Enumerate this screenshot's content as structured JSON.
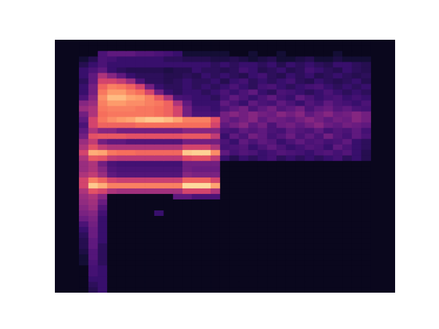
{
  "chart_data": {
    "type": "heatmap",
    "tick_labels": false,
    "grid": false,
    "xlim": [
      0,
      31
    ],
    "ylim": [
      0,
      46
    ],
    "color_range": [
      0,
      100
    ],
    "cells": [
      [
        0,
        0,
        0,
        0,
        0,
        0,
        0,
        0,
        0,
        0,
        0,
        0,
        0,
        0,
        0,
        0,
        0,
        0,
        0,
        0,
        0,
        0,
        0,
        0,
        0,
        0,
        0,
        0,
        0,
        0,
        0
      ],
      [
        0,
        0,
        0,
        0,
        0,
        0,
        0,
        0,
        0,
        0,
        0,
        0,
        0,
        0,
        0,
        0,
        0,
        0,
        0,
        0,
        0,
        0,
        0,
        0,
        0,
        0,
        0,
        0,
        0,
        0,
        0
      ],
      [
        0,
        0,
        20,
        25,
        25,
        25,
        22,
        22,
        20,
        18,
        15,
        5,
        5,
        5,
        5,
        5,
        0,
        0,
        5,
        0,
        0,
        5,
        0,
        0,
        0,
        0,
        0,
        5,
        0,
        0,
        0
      ],
      [
        5,
        10,
        20,
        18,
        15,
        15,
        15,
        15,
        15,
        12,
        12,
        10,
        10,
        10,
        8,
        8,
        10,
        8,
        5,
        8,
        10,
        5,
        5,
        8,
        10,
        5,
        5,
        8,
        5,
        5,
        5
      ],
      [
        10,
        15,
        20,
        15,
        15,
        15,
        15,
        15,
        15,
        15,
        15,
        15,
        15,
        15,
        12,
        15,
        12,
        15,
        15,
        12,
        15,
        10,
        15,
        12,
        15,
        12,
        10,
        15,
        15,
        12,
        10
      ],
      [
        15,
        20,
        25,
        15,
        12,
        10,
        10,
        10,
        10,
        8,
        10,
        10,
        15,
        12,
        12,
        10,
        12,
        18,
        15,
        10,
        12,
        15,
        10,
        12,
        18,
        15,
        12,
        10,
        15,
        12,
        10
      ],
      [
        15,
        25,
        45,
        35,
        25,
        15,
        12,
        12,
        12,
        10,
        10,
        12,
        10,
        15,
        12,
        15,
        12,
        10,
        15,
        18,
        12,
        10,
        15,
        12,
        15,
        10,
        12,
        15,
        12,
        10,
        12
      ],
      [
        12,
        25,
        55,
        55,
        50,
        40,
        20,
        12,
        12,
        10,
        12,
        15,
        12,
        12,
        15,
        10,
        15,
        18,
        12,
        15,
        12,
        15,
        18,
        12,
        10,
        15,
        12,
        10,
        12,
        15,
        10
      ],
      [
        15,
        30,
        65,
        72,
        70,
        65,
        55,
        30,
        15,
        12,
        12,
        15,
        12,
        15,
        12,
        15,
        20,
        15,
        12,
        18,
        20,
        15,
        12,
        15,
        18,
        20,
        15,
        12,
        15,
        12,
        15
      ],
      [
        15,
        30,
        70,
        78,
        78,
        72,
        68,
        55,
        30,
        15,
        12,
        15,
        15,
        12,
        15,
        20,
        15,
        20,
        25,
        15,
        12,
        20,
        18,
        15,
        12,
        15,
        20,
        15,
        12,
        15,
        12
      ],
      [
        20,
        35,
        75,
        85,
        85,
        80,
        78,
        72,
        62,
        45,
        20,
        18,
        15,
        15,
        12,
        18,
        25,
        20,
        15,
        20,
        25,
        18,
        15,
        25,
        20,
        15,
        18,
        20,
        15,
        18,
        15
      ],
      [
        35,
        40,
        72,
        78,
        78,
        75,
        75,
        72,
        70,
        65,
        45,
        25,
        15,
        15,
        15,
        25,
        20,
        15,
        25,
        20,
        18,
        25,
        20,
        15,
        22,
        18,
        25,
        20,
        18,
        15,
        20
      ],
      [
        40,
        45,
        70,
        72,
        72,
        72,
        70,
        70,
        68,
        65,
        55,
        30,
        18,
        18,
        15,
        20,
        25,
        30,
        20,
        25,
        30,
        22,
        25,
        30,
        20,
        25,
        28,
        22,
        25,
        20,
        18
      ],
      [
        30,
        45,
        68,
        70,
        70,
        70,
        70,
        70,
        68,
        65,
        55,
        30,
        20,
        20,
        18,
        30,
        35,
        30,
        35,
        30,
        28,
        35,
        30,
        35,
        25,
        30,
        35,
        28,
        30,
        35,
        30
      ],
      [
        25,
        55,
        70,
        75,
        78,
        80,
        85,
        88,
        88,
        85,
        80,
        72,
        72,
        72,
        60,
        30,
        25,
        30,
        35,
        25,
        30,
        28,
        25,
        30,
        35,
        30,
        25,
        30,
        28,
        35,
        30
      ],
      [
        20,
        55,
        65,
        65,
        65,
        65,
        68,
        68,
        68,
        68,
        68,
        68,
        68,
        68,
        55,
        25,
        30,
        35,
        25,
        30,
        20,
        28,
        30,
        25,
        30,
        35,
        28,
        25,
        30,
        28,
        25
      ],
      [
        25,
        45,
        35,
        35,
        30,
        30,
        30,
        30,
        30,
        30,
        30,
        35,
        35,
        35,
        35,
        20,
        18,
        25,
        22,
        25,
        20,
        18,
        25,
        22,
        20,
        25,
        18,
        22,
        20,
        25,
        18
      ],
      [
        30,
        60,
        62,
        62,
        62,
        60,
        60,
        60,
        60,
        60,
        60,
        62,
        62,
        62,
        50,
        15,
        25,
        20,
        30,
        25,
        18,
        22,
        28,
        20,
        25,
        20,
        30,
        22,
        18,
        25,
        20
      ],
      [
        40,
        50,
        30,
        25,
        25,
        22,
        22,
        22,
        22,
        22,
        22,
        30,
        30,
        30,
        30,
        20,
        15,
        25,
        20,
        25,
        22,
        15,
        20,
        25,
        20,
        22,
        18,
        20,
        25,
        15,
        12
      ],
      [
        45,
        60,
        50,
        45,
        45,
        45,
        45,
        45,
        45,
        45,
        45,
        55,
        55,
        55,
        45,
        18,
        20,
        22,
        15,
        20,
        25,
        20,
        15,
        18,
        22,
        20,
        15,
        25,
        20,
        15,
        12
      ],
      [
        55,
        82,
        80,
        70,
        68,
        68,
        66,
        66,
        66,
        66,
        66,
        88,
        90,
        90,
        75,
        25,
        18,
        22,
        20,
        15,
        18,
        22,
        20,
        18,
        15,
        20,
        22,
        18,
        22,
        15,
        10
      ],
      [
        45,
        62,
        60,
        50,
        48,
        48,
        48,
        48,
        48,
        48,
        48,
        58,
        60,
        60,
        50,
        15,
        10,
        15,
        12,
        15,
        18,
        12,
        15,
        12,
        15,
        12,
        15,
        18,
        12,
        15,
        10
      ],
      [
        40,
        45,
        30,
        20,
        18,
        18,
        18,
        18,
        18,
        18,
        18,
        30,
        30,
        30,
        30,
        0,
        0,
        0,
        0,
        0,
        0,
        0,
        0,
        0,
        0,
        0,
        0,
        0,
        0,
        0,
        0
      ],
      [
        40,
        45,
        35,
        22,
        20,
        20,
        20,
        20,
        20,
        20,
        20,
        30,
        28,
        28,
        28,
        0,
        0,
        0,
        0,
        0,
        0,
        0,
        0,
        0,
        0,
        0,
        0,
        0,
        0,
        0,
        0
      ],
      [
        45,
        50,
        40,
        25,
        22,
        22,
        22,
        22,
        22,
        22,
        22,
        35,
        32,
        32,
        32,
        0,
        0,
        0,
        0,
        0,
        0,
        0,
        0,
        0,
        0,
        0,
        0,
        0,
        0,
        0,
        0
      ],
      [
        55,
        72,
        65,
        55,
        52,
        52,
        52,
        52,
        52,
        52,
        52,
        65,
        65,
        65,
        55,
        0,
        0,
        0,
        0,
        0,
        0,
        0,
        0,
        0,
        0,
        0,
        0,
        0,
        0,
        0,
        0
      ],
      [
        55,
        88,
        82,
        72,
        72,
        72,
        72,
        72,
        72,
        72,
        72,
        92,
        92,
        92,
        80,
        0,
        0,
        0,
        0,
        0,
        0,
        0,
        0,
        0,
        0,
        0,
        0,
        0,
        0,
        0,
        0
      ],
      [
        45,
        60,
        55,
        45,
        42,
        42,
        42,
        42,
        42,
        42,
        42,
        55,
        55,
        55,
        45,
        0,
        0,
        0,
        0,
        0,
        0,
        0,
        0,
        0,
        0,
        0,
        0,
        0,
        0,
        0,
        0
      ],
      [
        40,
        45,
        35,
        0,
        0,
        0,
        0,
        0,
        0,
        0,
        25,
        25,
        20,
        20,
        20,
        0,
        0,
        0,
        0,
        0,
        0,
        0,
        0,
        0,
        0,
        0,
        0,
        0,
        0,
        0,
        0
      ],
      [
        38,
        42,
        28,
        0,
        0,
        0,
        0,
        0,
        0,
        0,
        0,
        0,
        0,
        0,
        0,
        0,
        0,
        0,
        0,
        0,
        0,
        0,
        0,
        0,
        0,
        0,
        0,
        0,
        0,
        0,
        0
      ],
      [
        35,
        40,
        22,
        0,
        0,
        0,
        0,
        0,
        0,
        0,
        0,
        0,
        0,
        0,
        0,
        0,
        0,
        0,
        0,
        0,
        0,
        0,
        0,
        0,
        0,
        0,
        0,
        0,
        0,
        0,
        0
      ],
      [
        32,
        35,
        18,
        0,
        0,
        0,
        0,
        0,
        15,
        0,
        0,
        0,
        0,
        0,
        0,
        0,
        0,
        0,
        0,
        0,
        0,
        0,
        0,
        0,
        0,
        0,
        0,
        0,
        0,
        0,
        0
      ],
      [
        28,
        32,
        15,
        0,
        0,
        0,
        0,
        0,
        0,
        0,
        0,
        0,
        0,
        0,
        0,
        0,
        0,
        0,
        0,
        0,
        0,
        0,
        0,
        0,
        0,
        0,
        0,
        0,
        0,
        0,
        0
      ],
      [
        20,
        30,
        15,
        0,
        0,
        0,
        0,
        0,
        0,
        0,
        0,
        0,
        0,
        0,
        0,
        0,
        0,
        0,
        0,
        0,
        0,
        0,
        0,
        0,
        0,
        0,
        0,
        0,
        0,
        0,
        0
      ],
      [
        15,
        28,
        15,
        0,
        0,
        0,
        0,
        0,
        0,
        0,
        0,
        0,
        0,
        0,
        0,
        0,
        0,
        0,
        0,
        0,
        0,
        0,
        0,
        0,
        0,
        0,
        0,
        0,
        0,
        0,
        0
      ],
      [
        12,
        28,
        15,
        0,
        0,
        0,
        0,
        0,
        0,
        0,
        0,
        0,
        0,
        0,
        0,
        0,
        0,
        0,
        0,
        0,
        0,
        0,
        0,
        0,
        0,
        0,
        0,
        0,
        0,
        0,
        0
      ],
      [
        10,
        25,
        15,
        0,
        0,
        0,
        0,
        0,
        0,
        0,
        0,
        0,
        0,
        0,
        0,
        0,
        0,
        0,
        0,
        0,
        0,
        0,
        0,
        0,
        0,
        0,
        0,
        0,
        0,
        0,
        0
      ],
      [
        10,
        25,
        12,
        0,
        0,
        0,
        0,
        0,
        0,
        0,
        0,
        0,
        0,
        0,
        0,
        0,
        0,
        0,
        0,
        0,
        0,
        0,
        0,
        0,
        0,
        0,
        0,
        0,
        0,
        0,
        0
      ],
      [
        8,
        22,
        12,
        0,
        0,
        0,
        0,
        0,
        0,
        0,
        0,
        0,
        0,
        0,
        0,
        0,
        0,
        0,
        0,
        0,
        0,
        0,
        0,
        0,
        0,
        0,
        0,
        0,
        0,
        0,
        0
      ],
      [
        5,
        22,
        12,
        0,
        0,
        0,
        0,
        0,
        0,
        0,
        0,
        0,
        0,
        0,
        0,
        0,
        0,
        0,
        0,
        0,
        0,
        0,
        0,
        0,
        0,
        0,
        0,
        0,
        0,
        0,
        0
      ],
      [
        5,
        20,
        12,
        0,
        0,
        0,
        0,
        0,
        0,
        0,
        0,
        0,
        0,
        0,
        0,
        0,
        0,
        0,
        0,
        0,
        0,
        0,
        0,
        0,
        0,
        0,
        0,
        0,
        0,
        0,
        0
      ],
      [
        0,
        18,
        15,
        0,
        0,
        0,
        0,
        0,
        0,
        0,
        0,
        0,
        0,
        0,
        0,
        0,
        0,
        0,
        0,
        0,
        0,
        0,
        0,
        0,
        0,
        0,
        0,
        0,
        0,
        0,
        0
      ],
      [
        0,
        18,
        15,
        0,
        0,
        0,
        0,
        0,
        0,
        0,
        0,
        0,
        0,
        0,
        0,
        0,
        0,
        0,
        0,
        0,
        0,
        0,
        0,
        0,
        0,
        0,
        0,
        0,
        0,
        0,
        0
      ],
      [
        0,
        15,
        15,
        0,
        0,
        0,
        0,
        0,
        0,
        0,
        0,
        0,
        0,
        0,
        0,
        0,
        0,
        0,
        0,
        0,
        0,
        0,
        0,
        0,
        0,
        0,
        0,
        0,
        0,
        0,
        0
      ],
      [
        0,
        12,
        15,
        0,
        0,
        0,
        0,
        0,
        0,
        0,
        0,
        0,
        0,
        0,
        0,
        0,
        0,
        0,
        0,
        0,
        0,
        0,
        0,
        0,
        0,
        0,
        0,
        0,
        0,
        0,
        0
      ],
      [
        0,
        10,
        15,
        0,
        0,
        0,
        0,
        0,
        0,
        0,
        0,
        0,
        0,
        0,
        0,
        0,
        0,
        0,
        0,
        0,
        0,
        0,
        0,
        0,
        0,
        0,
        0,
        0,
        0,
        0,
        0
      ]
    ]
  }
}
